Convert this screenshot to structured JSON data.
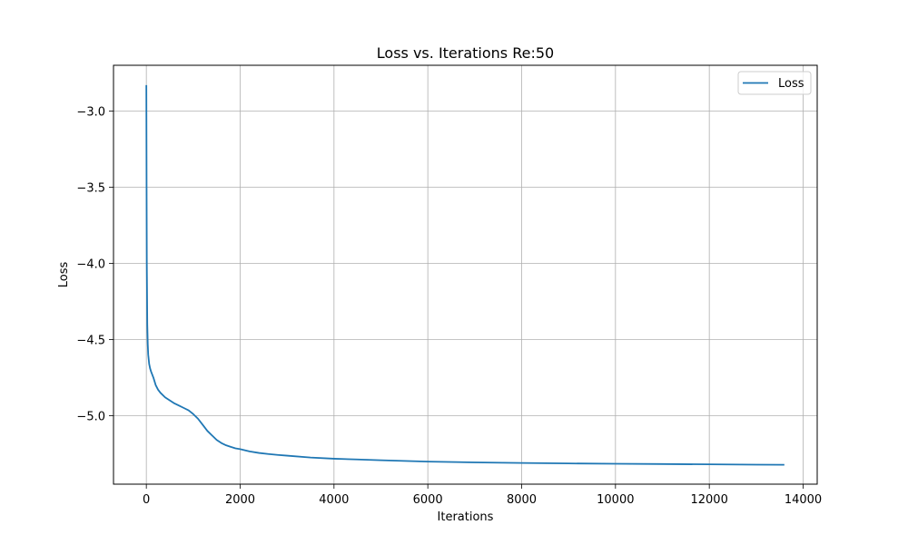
{
  "chart_data": {
    "type": "line",
    "title": "Loss vs. Iterations Re:50",
    "xlabel": "Iterations",
    "ylabel": "Loss",
    "xlim": [
      -700,
      14300
    ],
    "ylim": [
      -5.45,
      -2.7
    ],
    "xticks": [
      0,
      2000,
      4000,
      6000,
      8000,
      10000,
      12000,
      14000
    ],
    "xtick_labels": [
      "0",
      "2000",
      "4000",
      "6000",
      "8000",
      "10000",
      "12000",
      "14000"
    ],
    "yticks": [
      -3.0,
      -3.5,
      -4.0,
      -4.5,
      -5.0
    ],
    "ytick_labels": [
      "−3.0",
      "−3.5",
      "−4.0",
      "−4.5",
      "−5.0"
    ],
    "grid": true,
    "legend_position": "top-right",
    "series_color": "#1f77b4",
    "series": [
      {
        "name": "Loss",
        "x": [
          0,
          5,
          10,
          20,
          30,
          40,
          60,
          80,
          100,
          150,
          200,
          250,
          300,
          400,
          500,
          600,
          700,
          800,
          900,
          1000,
          1100,
          1200,
          1300,
          1400,
          1500,
          1600,
          1700,
          1800,
          1900,
          2000,
          2200,
          2400,
          2600,
          2800,
          3000,
          3500,
          4000,
          4500,
          5000,
          6000,
          7000,
          8000,
          9000,
          10000,
          11000,
          12000,
          13000,
          13600
        ],
        "y": [
          -2.83,
          -3.5,
          -4.0,
          -4.4,
          -4.53,
          -4.6,
          -4.66,
          -4.69,
          -4.71,
          -4.75,
          -4.8,
          -4.83,
          -4.85,
          -4.88,
          -4.9,
          -4.92,
          -4.935,
          -4.95,
          -4.965,
          -4.99,
          -5.02,
          -5.06,
          -5.1,
          -5.13,
          -5.16,
          -5.18,
          -5.195,
          -5.205,
          -5.215,
          -5.22,
          -5.235,
          -5.245,
          -5.252,
          -5.258,
          -5.263,
          -5.275,
          -5.283,
          -5.288,
          -5.293,
          -5.302,
          -5.307,
          -5.311,
          -5.314,
          -5.316,
          -5.318,
          -5.32,
          -5.322,
          -5.323
        ]
      }
    ]
  }
}
